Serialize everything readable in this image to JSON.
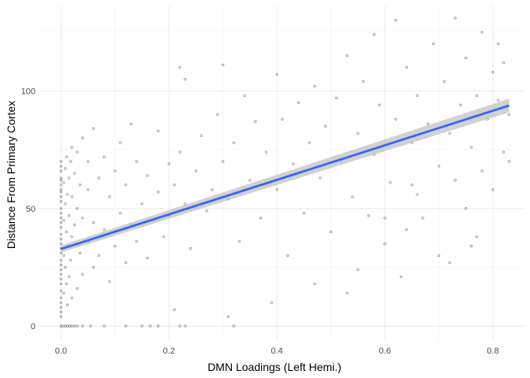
{
  "chart_data": {
    "type": "scatter",
    "title": "",
    "xlabel": "DMN Loadings (Left Hemi.)",
    "ylabel": "Distance From Primary Cortex",
    "xlim": [
      -0.04,
      0.86
    ],
    "ylim": [
      -6,
      136
    ],
    "x_ticks": [
      0.0,
      0.2,
      0.4,
      0.6,
      0.8
    ],
    "x_tick_labels": [
      "0.0",
      "0.2",
      "0.4",
      "0.6",
      "0.8"
    ],
    "y_ticks": [
      0,
      50,
      100
    ],
    "y_tick_labels": [
      "0",
      "50",
      "100"
    ],
    "grid": true,
    "legend": "none",
    "point_color": "#000000",
    "point_alpha": 0.3,
    "fit": {
      "type": "linear",
      "color": "#3366FF",
      "band_color": "#bebebe",
      "x": [
        0.0,
        0.83
      ],
      "y": [
        32.8,
        93.8
      ],
      "se_lower": [
        31.3,
        90.9
      ],
      "se_upper": [
        34.3,
        96.7
      ]
    },
    "series": [
      {
        "name": "",
        "points": [
          [
            0.0,
            4
          ],
          [
            0.0,
            8
          ],
          [
            0.0,
            12
          ],
          [
            0.0,
            15
          ],
          [
            0.0,
            20
          ],
          [
            0.0,
            24
          ],
          [
            0.0,
            28
          ],
          [
            0.0,
            31
          ],
          [
            0.0,
            35
          ],
          [
            0.0,
            39
          ],
          [
            0.0,
            42
          ],
          [
            0.0,
            46
          ],
          [
            0.0,
            50
          ],
          [
            0.0,
            53
          ],
          [
            0.0,
            57
          ],
          [
            0.0,
            60
          ],
          [
            0.0,
            63
          ],
          [
            0.0,
            66
          ],
          [
            0.0,
            70
          ],
          [
            0.0,
            10
          ],
          [
            0.0,
            18
          ],
          [
            0.0,
            26
          ],
          [
            0.0,
            37
          ],
          [
            0.0,
            44
          ],
          [
            0.0,
            55
          ],
          [
            0.0,
            62
          ],
          [
            0.0,
            68
          ],
          [
            0.0,
            6
          ],
          [
            0.0,
            22
          ],
          [
            0.0,
            33
          ],
          [
            0.0,
            48
          ],
          [
            0.0,
            58
          ],
          [
            0.005,
            14
          ],
          [
            0.005,
            30
          ],
          [
            0.005,
            45
          ],
          [
            0.005,
            61
          ],
          [
            0.008,
            25
          ],
          [
            0.008,
            52
          ],
          [
            0.008,
            67
          ],
          [
            0.01,
            18
          ],
          [
            0.01,
            40
          ],
          [
            0.01,
            72
          ],
          [
            0.012,
            9
          ],
          [
            0.012,
            34
          ],
          [
            0.012,
            56
          ],
          [
            0.015,
            21
          ],
          [
            0.015,
            47
          ],
          [
            0.015,
            63
          ],
          [
            0.018,
            28
          ],
          [
            0.018,
            70
          ],
          [
            0.02,
            12
          ],
          [
            0.02,
            38
          ],
          [
            0.02,
            55
          ],
          [
            0.02,
            76
          ],
          [
            0.025,
            43
          ],
          [
            0.025,
            65
          ],
          [
            0.03,
            16
          ],
          [
            0.03,
            50
          ],
          [
            0.03,
            74
          ],
          [
            0.035,
            31
          ],
          [
            0.035,
            60
          ],
          [
            0.04,
            22
          ],
          [
            0.04,
            46
          ],
          [
            0.04,
            80
          ],
          [
            0.05,
            36
          ],
          [
            0.05,
            58
          ],
          [
            0.05,
            70
          ],
          [
            0.06,
            25
          ],
          [
            0.06,
            44
          ],
          [
            0.06,
            84
          ],
          [
            0.07,
            30
          ],
          [
            0.07,
            63
          ],
          [
            0.08,
            41
          ],
          [
            0.08,
            72
          ],
          [
            0.09,
            19
          ],
          [
            0.09,
            55
          ],
          [
            0.1,
            34
          ],
          [
            0.1,
            66
          ],
          [
            0.11,
            48
          ],
          [
            0.11,
            78
          ],
          [
            0.12,
            27
          ],
          [
            0.12,
            60
          ],
          [
            0.13,
            43
          ],
          [
            0.13,
            86
          ],
          [
            0.14,
            36
          ],
          [
            0.14,
            70
          ],
          [
            0.15,
            52
          ],
          [
            0.16,
            29
          ],
          [
            0.16,
            64
          ],
          [
            0.17,
            45
          ],
          [
            0.18,
            83
          ],
          [
            0.18,
            57
          ],
          [
            0.19,
            38
          ],
          [
            0.2,
            69
          ],
          [
            0.2,
            47
          ],
          [
            0.21,
            7
          ],
          [
            0.21,
            60
          ],
          [
            0.22,
            110
          ],
          [
            0.22,
            74
          ],
          [
            0.23,
            52
          ],
          [
            0.23,
            105
          ],
          [
            0.24,
            33
          ],
          [
            0.25,
            66
          ],
          [
            0.26,
            81
          ],
          [
            0.27,
            49
          ],
          [
            0.28,
            58
          ],
          [
            0.29,
            90
          ],
          [
            0.3,
            111
          ],
          [
            0.3,
            70
          ],
          [
            0.31,
            4
          ],
          [
            0.31,
            54
          ],
          [
            0.32,
            78
          ],
          [
            0.33,
            36
          ],
          [
            0.34,
            98
          ],
          [
            0.35,
            62
          ],
          [
            0.36,
            87
          ],
          [
            0.37,
            46
          ],
          [
            0.38,
            74
          ],
          [
            0.39,
            10
          ],
          [
            0.4,
            107
          ],
          [
            0.4,
            58
          ],
          [
            0.41,
            88
          ],
          [
            0.42,
            30
          ],
          [
            0.43,
            69
          ],
          [
            0.44,
            95
          ],
          [
            0.45,
            48
          ],
          [
            0.46,
            78
          ],
          [
            0.47,
            102
          ],
          [
            0.47,
            18
          ],
          [
            0.48,
            63
          ],
          [
            0.49,
            85
          ],
          [
            0.5,
            40
          ],
          [
            0.51,
            97
          ],
          [
            0.52,
            70
          ],
          [
            0.53,
            14
          ],
          [
            0.53,
            115
          ],
          [
            0.54,
            55
          ],
          [
            0.55,
            82
          ],
          [
            0.56,
            104
          ],
          [
            0.57,
            47
          ],
          [
            0.58,
            124
          ],
          [
            0.58,
            73
          ],
          [
            0.59,
            94
          ],
          [
            0.6,
            35
          ],
          [
            0.61,
            61
          ],
          [
            0.62,
            130
          ],
          [
            0.62,
            88
          ],
          [
            0.63,
            21
          ],
          [
            0.64,
            110
          ],
          [
            0.65,
            60
          ],
          [
            0.65,
            78
          ],
          [
            0.66,
            98
          ],
          [
            0.67,
            46
          ],
          [
            0.68,
            86
          ],
          [
            0.69,
            120
          ],
          [
            0.7,
            30
          ],
          [
            0.7,
            68
          ],
          [
            0.71,
            104
          ],
          [
            0.72,
            82
          ],
          [
            0.73,
            131
          ],
          [
            0.73,
            62
          ],
          [
            0.74,
            94
          ],
          [
            0.75,
            50
          ],
          [
            0.75,
            114
          ],
          [
            0.76,
            76
          ],
          [
            0.77,
            38
          ],
          [
            0.77,
            98
          ],
          [
            0.78,
            125
          ],
          [
            0.78,
            66
          ],
          [
            0.79,
            88
          ],
          [
            0.8,
            108
          ],
          [
            0.8,
            58
          ],
          [
            0.81,
            120
          ],
          [
            0.81,
            96
          ],
          [
            0.82,
            74
          ],
          [
            0.82,
            112
          ],
          [
            0.83,
            90
          ],
          [
            0.83,
            70
          ],
          [
            0.76,
            34
          ],
          [
            0.72,
            27
          ],
          [
            0.66,
            56
          ],
          [
            0.55,
            24
          ],
          [
            0.6,
            46
          ],
          [
            0.64,
            41
          ]
        ]
      },
      {
        "name": "",
        "points": [
          [
            0.0,
            0
          ],
          [
            0.004,
            0
          ],
          [
            0.008,
            0
          ],
          [
            0.012,
            0
          ],
          [
            0.016,
            0
          ],
          [
            0.02,
            0
          ],
          [
            0.025,
            0
          ],
          [
            0.03,
            0
          ],
          [
            0.04,
            0
          ],
          [
            0.055,
            0
          ],
          [
            0.08,
            0
          ],
          [
            0.12,
            0
          ],
          [
            0.15,
            0
          ],
          [
            0.165,
            0
          ],
          [
            0.18,
            0
          ],
          [
            0.22,
            0
          ],
          [
            0.23,
            0
          ],
          [
            0.32,
            0
          ]
        ]
      }
    ]
  }
}
